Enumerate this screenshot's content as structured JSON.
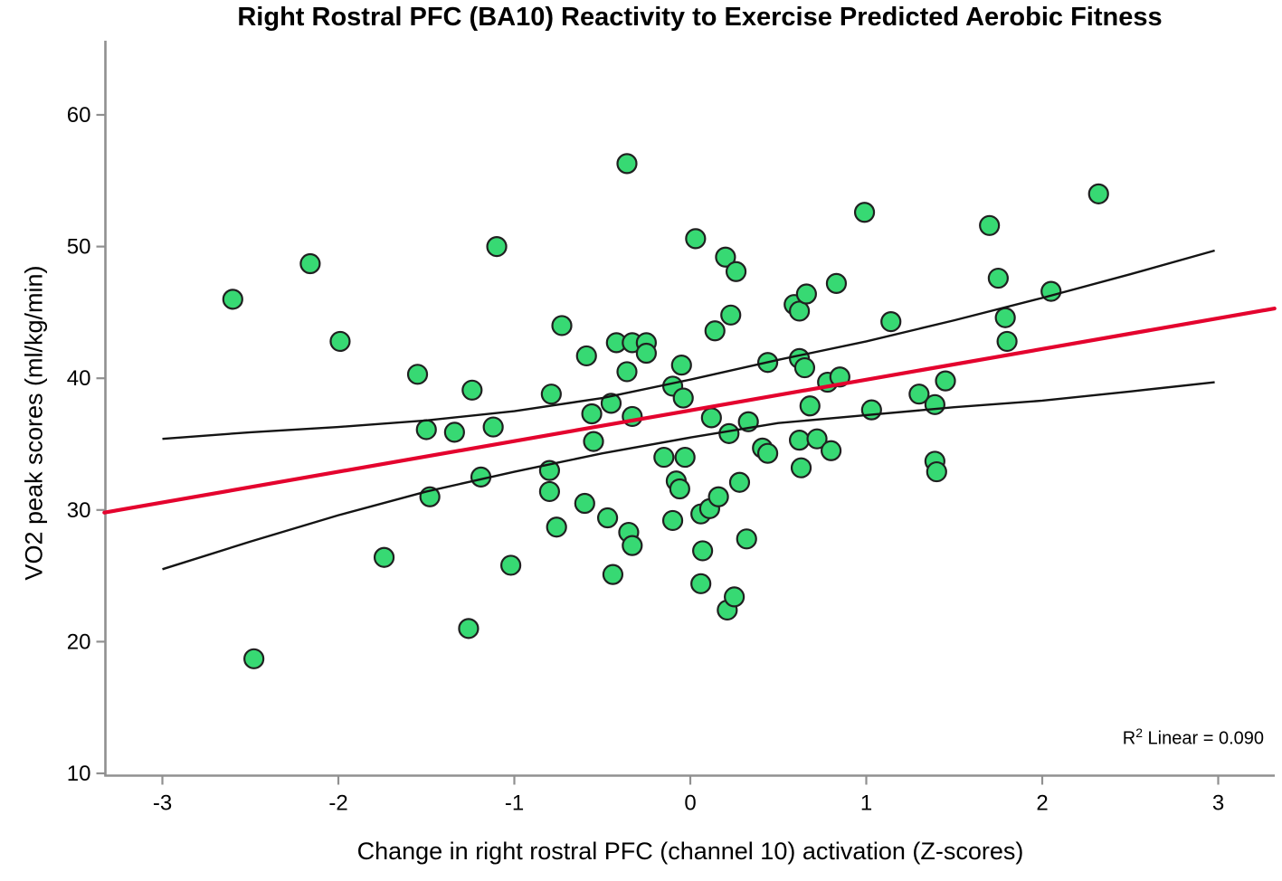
{
  "title": "Right Rostral PFC (BA10) Reactivity to Exercise Predicted Aerobic Fitness",
  "annotation": {
    "r2_base": "R",
    "r2_sup": "2",
    "r2_text": " Linear = 0.090"
  },
  "chart_data": {
    "type": "scatter",
    "title": "Right Rostral PFC (BA10) Reactivity to Exercise Predicted Aerobic Fitness",
    "xlabel": "Change in right rostral PFC (channel 10) activation (Z-scores)",
    "ylabel": "VO2 peak scores (ml/kg/min)",
    "r2_label": "R2 Linear = 0.090",
    "r2_value": 0.09,
    "xlim": [
      -3.33,
      3.32
    ],
    "ylim": [
      10,
      65.6
    ],
    "x_ticks": [
      -3,
      -2,
      -1,
      0,
      1,
      2,
      3
    ],
    "y_ticks": [
      10,
      20,
      30,
      40,
      50,
      60
    ],
    "grid": false,
    "legend_position": "none",
    "point_color": "#37d973",
    "point_edge_color": "#202020",
    "regression_color": "#e4032e",
    "ci_color": "#141414",
    "axis_color": "#909090",
    "text_color": "#000000",
    "points": [
      [
        -2.6,
        46.0
      ],
      [
        -2.48,
        18.7
      ],
      [
        -2.16,
        48.7
      ],
      [
        -1.99,
        42.8
      ],
      [
        -1.74,
        26.4
      ],
      [
        -1.55,
        40.3
      ],
      [
        -1.5,
        36.1
      ],
      [
        -1.48,
        31.0
      ],
      [
        -1.34,
        35.9
      ],
      [
        -1.26,
        21.0
      ],
      [
        -1.24,
        39.1
      ],
      [
        -1.19,
        32.5
      ],
      [
        -1.12,
        36.3
      ],
      [
        -1.1,
        50.0
      ],
      [
        -1.02,
        25.8
      ],
      [
        -0.8,
        33.0
      ],
      [
        -0.8,
        31.4
      ],
      [
        -0.79,
        38.8
      ],
      [
        -0.76,
        28.7
      ],
      [
        -0.73,
        44.0
      ],
      [
        -0.6,
        30.5
      ],
      [
        -0.59,
        41.7
      ],
      [
        -0.56,
        37.3
      ],
      [
        -0.55,
        35.2
      ],
      [
        -0.47,
        29.4
      ],
      [
        -0.45,
        38.1
      ],
      [
        -0.44,
        25.1
      ],
      [
        -0.42,
        42.7
      ],
      [
        -0.36,
        56.3
      ],
      [
        -0.36,
        40.5
      ],
      [
        -0.35,
        28.3
      ],
      [
        -0.33,
        42.7
      ],
      [
        -0.33,
        37.1
      ],
      [
        -0.33,
        27.3
      ],
      [
        -0.25,
        42.7
      ],
      [
        -0.25,
        41.9
      ],
      [
        -0.15,
        34.0
      ],
      [
        -0.1,
        39.4
      ],
      [
        -0.1,
        29.2
      ],
      [
        -0.08,
        32.2
      ],
      [
        -0.06,
        31.6
      ],
      [
        -0.05,
        41.0
      ],
      [
        -0.04,
        38.5
      ],
      [
        -0.03,
        34.0
      ],
      [
        0.03,
        50.6
      ],
      [
        0.06,
        29.7
      ],
      [
        0.06,
        24.4
      ],
      [
        0.07,
        26.9
      ],
      [
        0.11,
        30.1
      ],
      [
        0.12,
        37.0
      ],
      [
        0.14,
        43.6
      ],
      [
        0.16,
        31.0
      ],
      [
        0.2,
        49.2
      ],
      [
        0.21,
        22.4
      ],
      [
        0.22,
        35.8
      ],
      [
        0.23,
        44.8
      ],
      [
        0.25,
        23.4
      ],
      [
        0.26,
        48.1
      ],
      [
        0.28,
        32.1
      ],
      [
        0.32,
        27.8
      ],
      [
        0.33,
        36.7
      ],
      [
        0.41,
        34.7
      ],
      [
        0.44,
        41.2
      ],
      [
        0.44,
        34.3
      ],
      [
        0.59,
        45.6
      ],
      [
        0.62,
        45.1
      ],
      [
        0.62,
        41.5
      ],
      [
        0.62,
        35.3
      ],
      [
        0.63,
        33.2
      ],
      [
        0.65,
        40.8
      ],
      [
        0.66,
        46.4
      ],
      [
        0.68,
        37.9
      ],
      [
        0.72,
        35.4
      ],
      [
        0.78,
        39.7
      ],
      [
        0.8,
        34.5
      ],
      [
        0.83,
        47.2
      ],
      [
        0.85,
        40.1
      ],
      [
        0.99,
        52.6
      ],
      [
        1.03,
        37.6
      ],
      [
        1.14,
        44.3
      ],
      [
        1.3,
        38.8
      ],
      [
        1.39,
        38.0
      ],
      [
        1.39,
        33.7
      ],
      [
        1.4,
        32.9
      ],
      [
        1.45,
        39.8
      ],
      [
        1.7,
        51.6
      ],
      [
        1.75,
        47.6
      ],
      [
        1.79,
        44.6
      ],
      [
        1.8,
        42.8
      ],
      [
        2.05,
        46.6
      ],
      [
        2.32,
        54.0
      ]
    ],
    "regression_line": [
      [
        -3.33,
        29.8
      ],
      [
        3.32,
        45.3
      ]
    ],
    "ci_upper": [
      [
        -3.0,
        35.4
      ],
      [
        -2.5,
        35.9
      ],
      [
        -2.0,
        36.3
      ],
      [
        -1.5,
        36.8
      ],
      [
        -1.0,
        37.5
      ],
      [
        -0.5,
        38.5
      ],
      [
        0.0,
        39.9
      ],
      [
        0.5,
        41.4
      ],
      [
        1.0,
        42.8
      ],
      [
        1.5,
        44.4
      ],
      [
        2.0,
        46.1
      ],
      [
        2.5,
        47.9
      ],
      [
        2.98,
        49.7
      ]
    ],
    "ci_lower": [
      [
        -3.0,
        25.5
      ],
      [
        -2.5,
        27.6
      ],
      [
        -2.0,
        29.6
      ],
      [
        -1.5,
        31.4
      ],
      [
        -1.0,
        32.9
      ],
      [
        -0.5,
        34.3
      ],
      [
        0.0,
        35.5
      ],
      [
        0.5,
        36.6
      ],
      [
        1.0,
        37.2
      ],
      [
        1.5,
        37.8
      ],
      [
        2.0,
        38.3
      ],
      [
        2.5,
        39.0
      ],
      [
        2.98,
        39.7
      ]
    ]
  }
}
